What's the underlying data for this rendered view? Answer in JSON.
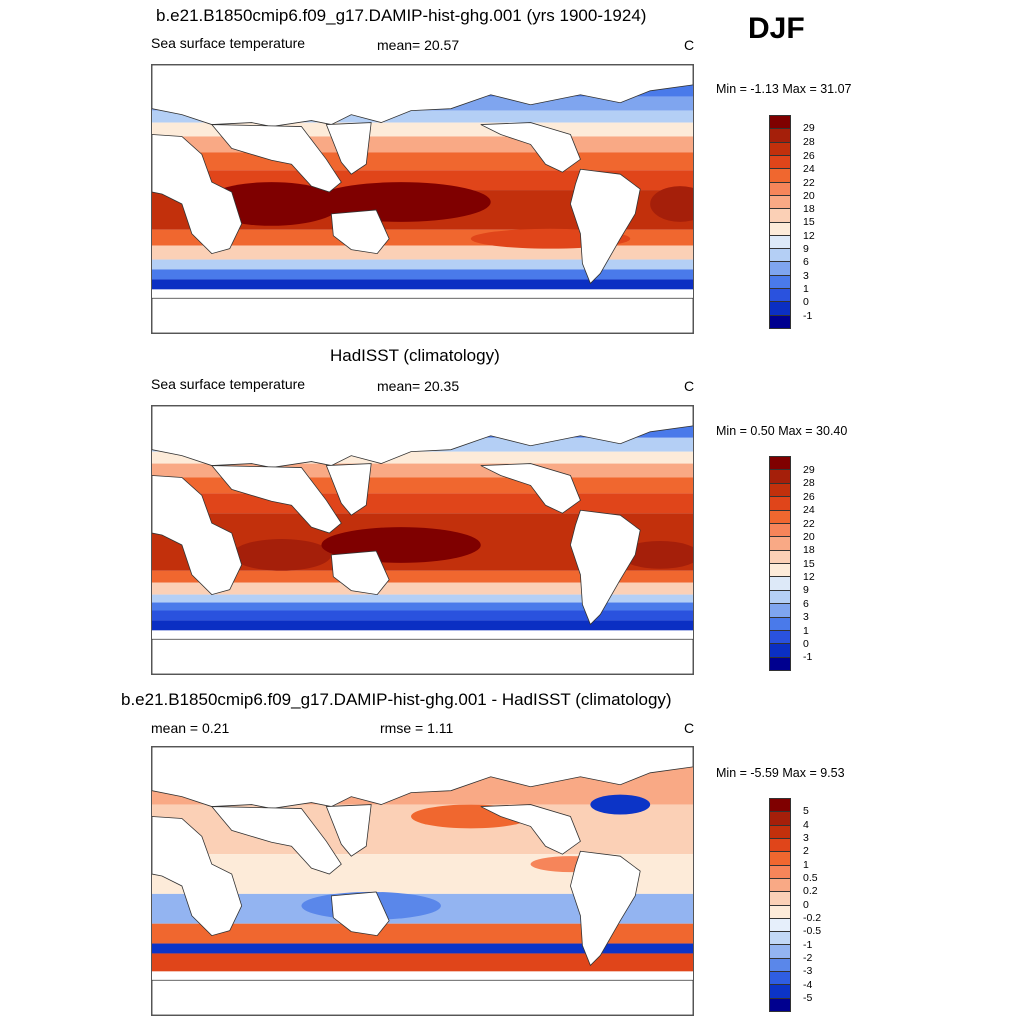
{
  "season": "DJF",
  "panels": [
    {
      "title": "b.e21.B1850cmip6.f09_g17.DAMIP-hist-ghg.001 (yrs 1900-1924)",
      "left_label": "Sea surface temperature",
      "center_label": "mean=  20.57",
      "unit": "C",
      "minmax": "Min =  -1.13 Max =  31.07",
      "colorbar_labels": [
        "29",
        "28",
        "26",
        "24",
        "22",
        "20",
        "18",
        "15",
        "12",
        "9",
        "6",
        "3",
        "1",
        "0",
        "-1"
      ]
    },
    {
      "title": "HadISST (climatology)",
      "left_label": "Sea surface temperature",
      "center_label": "mean=  20.35",
      "unit": "C",
      "minmax": "Min =   0.50 Max =  30.40",
      "colorbar_labels": [
        "29",
        "28",
        "26",
        "24",
        "22",
        "20",
        "18",
        "15",
        "12",
        "9",
        "6",
        "3",
        "1",
        "0",
        "-1"
      ]
    },
    {
      "title": "b.e21.B1850cmip6.f09_g17.DAMIP-hist-ghg.001 - HadISST (climatology)",
      "left_label": "mean =   0.21",
      "center_label": "rmse =   1.11",
      "unit": "C",
      "minmax": "Min =  -5.59 Max =   9.53",
      "colorbar_labels": [
        "5",
        "4",
        "3",
        "2",
        "1",
        "0.5",
        "0.2",
        "0",
        "-0.2",
        "-0.5",
        "-1",
        "-2",
        "-3",
        "-4",
        "-5"
      ]
    }
  ],
  "colors": {
    "abs_scale": [
      "#7f0000",
      "#a51f0a",
      "#c2300c",
      "#e0451a",
      "#f0672f",
      "#f6855a",
      "#f9a985",
      "#fbd0b6",
      "#fdebd9",
      "#dde9f8",
      "#b4cff5",
      "#7fa5ef",
      "#4a7aea",
      "#2a52de",
      "#0b2fc3",
      "#00008f"
    ],
    "diff_scale": [
      "#7f0000",
      "#a51f0a",
      "#c2300c",
      "#e0451a",
      "#f0672f",
      "#f6855a",
      "#f9a985",
      "#fbd0b6",
      "#fdebd9",
      "#e6effb",
      "#c2d8f6",
      "#93b4f1",
      "#5a87ea",
      "#2f5ee2",
      "#0c34c7",
      "#00008f"
    ]
  }
}
